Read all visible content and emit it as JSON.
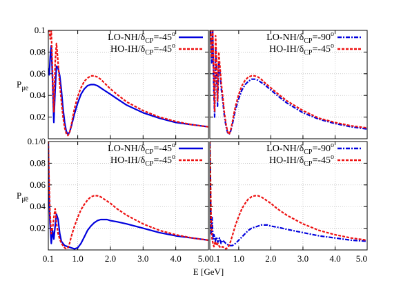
{
  "chart_data": {
    "type": "line",
    "xlabel": "E [GeV]",
    "xlim": [
      0.1,
      5.0
    ],
    "x_ticks": [
      "0.1",
      "1.0",
      "2.0",
      "3.0",
      "4.0",
      "5.0"
    ],
    "x_ticks_right": [
      "0.1",
      "1.0",
      "2.0",
      "3.0",
      "4.0",
      "5.0"
    ],
    "x_tick_left_last": "5.0",
    "x_tick_right_first": "0.1",
    "grid": true,
    "panels": [
      {
        "id": "top-left",
        "ylabel_main": "P",
        "ylabel_sub": "μe",
        "ylim": [
          0,
          0.1
        ],
        "y_ticks": [
          "0.02",
          "0.04",
          "0.06",
          "0.08",
          "0.1"
        ],
        "legend": "top-right",
        "series": [
          {
            "name_main": "LO-NH/δ",
            "name_sub": "CP",
            "name_tail": "=-45",
            "name_sup": "o",
            "color": "#0000dd",
            "style": "solid",
            "x": [
              0.1,
              0.13,
              0.16,
              0.19,
              0.23,
              0.27,
              0.31,
              0.35,
              0.4,
              0.45,
              0.5,
              0.55,
              0.6,
              0.65,
              0.7,
              0.75,
              0.8,
              0.85,
              0.9,
              1.0,
              1.1,
              1.2,
              1.3,
              1.4,
              1.5,
              1.6,
              1.7,
              1.8,
              2.0,
              2.2,
              2.5,
              3.0,
              3.5,
              4.0,
              4.5,
              5.0
            ],
            "y": [
              0.065,
              0.059,
              0.076,
              0.086,
              0.052,
              0.015,
              0.045,
              0.067,
              0.065,
              0.058,
              0.045,
              0.028,
              0.015,
              0.007,
              0.004,
              0.006,
              0.011,
              0.017,
              0.023,
              0.033,
              0.041,
              0.046,
              0.049,
              0.05,
              0.05,
              0.049,
              0.047,
              0.045,
              0.041,
              0.037,
              0.031,
              0.024,
              0.019,
              0.015,
              0.013,
              0.011
            ]
          },
          {
            "name_main": "HO-IH/δ",
            "name_sub": "CP",
            "name_tail": "=-45",
            "name_sup": "o",
            "color": "#ee1111",
            "style": "dashed",
            "x": [
              0.1,
              0.13,
              0.16,
              0.19,
              0.23,
              0.27,
              0.31,
              0.35,
              0.4,
              0.45,
              0.5,
              0.55,
              0.6,
              0.65,
              0.7,
              0.75,
              0.8,
              0.85,
              0.9,
              1.0,
              1.1,
              1.2,
              1.3,
              1.4,
              1.5,
              1.6,
              1.7,
              1.8,
              2.0,
              2.2,
              2.5,
              3.0,
              3.5,
              4.0,
              4.5,
              5.0
            ],
            "y": [
              0.1,
              0.1,
              0.092,
              0.1,
              0.06,
              0.025,
              0.07,
              0.088,
              0.07,
              0.05,
              0.035,
              0.02,
              0.01,
              0.005,
              0.003,
              0.006,
              0.012,
              0.02,
              0.028,
              0.039,
              0.047,
              0.053,
              0.056,
              0.058,
              0.058,
              0.057,
              0.055,
              0.052,
              0.046,
              0.041,
              0.034,
              0.026,
              0.02,
              0.016,
              0.013,
              0.011
            ]
          }
        ]
      },
      {
        "id": "top-right",
        "ylim": [
          0,
          0.1
        ],
        "legend": "top-right",
        "series": [
          {
            "name_main": "LO-NH/δ",
            "name_sub": "CP",
            "name_tail": "=-90",
            "name_sup": "o",
            "color": "#0000dd",
            "style": "dashdot",
            "x": [
              0.1,
              0.13,
              0.16,
              0.19,
              0.22,
              0.25,
              0.28,
              0.31,
              0.34,
              0.38,
              0.42,
              0.46,
              0.5,
              0.55,
              0.6,
              0.65,
              0.7,
              0.75,
              0.8,
              0.85,
              0.9,
              1.0,
              1.1,
              1.2,
              1.3,
              1.4,
              1.5,
              1.6,
              1.7,
              1.8,
              2.0,
              2.2,
              2.5,
              3.0,
              3.5,
              4.0,
              4.5,
              5.0
            ],
            "y": [
              0.1,
              0.1,
              0.07,
              0.1,
              0.05,
              0.02,
              0.085,
              0.06,
              0.03,
              0.072,
              0.06,
              0.045,
              0.036,
              0.022,
              0.012,
              0.006,
              0.004,
              0.007,
              0.013,
              0.02,
              0.027,
              0.037,
              0.045,
              0.05,
              0.053,
              0.055,
              0.055,
              0.054,
              0.052,
              0.05,
              0.045,
              0.04,
              0.033,
              0.024,
              0.018,
              0.014,
              0.011,
              0.009
            ]
          },
          {
            "name_main": "HO-IH/δ",
            "name_sub": "CP",
            "name_tail": "=-45",
            "name_sup": "o",
            "color": "#ee1111",
            "style": "dashed",
            "x": [
              0.1,
              0.13,
              0.16,
              0.19,
              0.22,
              0.25,
              0.28,
              0.31,
              0.34,
              0.38,
              0.42,
              0.46,
              0.5,
              0.55,
              0.6,
              0.65,
              0.7,
              0.75,
              0.8,
              0.85,
              0.9,
              1.0,
              1.1,
              1.2,
              1.3,
              1.4,
              1.5,
              1.6,
              1.7,
              1.8,
              2.0,
              2.2,
              2.5,
              3.0,
              3.5,
              4.0,
              4.5,
              5.0
            ],
            "y": [
              0.1,
              0.1,
              0.075,
              0.1,
              0.06,
              0.025,
              0.095,
              0.07,
              0.035,
              0.08,
              0.065,
              0.05,
              0.04,
              0.025,
              0.014,
              0.007,
              0.004,
              0.008,
              0.015,
              0.023,
              0.03,
              0.041,
              0.049,
              0.054,
              0.057,
              0.058,
              0.058,
              0.057,
              0.055,
              0.052,
              0.047,
              0.042,
              0.035,
              0.026,
              0.019,
              0.015,
              0.012,
              0.01
            ]
          }
        ]
      },
      {
        "id": "bottom-left",
        "ylabel_main": "P",
        "ylabel_sub": "μ̄ē",
        "ylim": [
          0,
          0.1
        ],
        "y_ticks": [
          "0.02",
          "0.04",
          "0.06",
          "0.08",
          "0.1/0"
        ],
        "legend": "top-right",
        "series": [
          {
            "name_main": "LO-NH/δ",
            "name_sub": "CP",
            "name_tail": "=-45",
            "name_sup": "o",
            "color": "#0000dd",
            "style": "solid",
            "x": [
              0.1,
              0.12,
              0.15,
              0.19,
              0.23,
              0.27,
              0.31,
              0.35,
              0.4,
              0.45,
              0.5,
              0.55,
              0.6,
              0.7,
              0.8,
              0.9,
              1.0,
              1.1,
              1.2,
              1.3,
              1.4,
              1.5,
              1.6,
              1.7,
              1.8,
              1.9,
              2.0,
              2.2,
              2.5,
              3.0,
              3.5,
              4.0,
              4.5,
              5.0
            ],
            "y": [
              0.1,
              0.055,
              0.025,
              0.006,
              0.018,
              0.01,
              0.022,
              0.033,
              0.028,
              0.015,
              0.008,
              0.006,
              0.004,
              0.003,
              0.002,
              0.001,
              0.002,
              0.006,
              0.012,
              0.018,
              0.022,
              0.025,
              0.027,
              0.028,
              0.028,
              0.028,
              0.027,
              0.026,
              0.024,
              0.02,
              0.016,
              0.013,
              0.011,
              0.009
            ]
          },
          {
            "name_main": "HO-IH/δ",
            "name_sub": "CP",
            "name_tail": "=-45",
            "name_sup": "o",
            "color": "#ee1111",
            "style": "dashed",
            "x": [
              0.1,
              0.12,
              0.15,
              0.19,
              0.23,
              0.27,
              0.31,
              0.35,
              0.4,
              0.45,
              0.5,
              0.55,
              0.6,
              0.65,
              0.7,
              0.75,
              0.8,
              0.9,
              1.0,
              1.1,
              1.2,
              1.3,
              1.4,
              1.5,
              1.6,
              1.7,
              1.8,
              2.0,
              2.2,
              2.5,
              3.0,
              3.5,
              4.0,
              4.5,
              5.0
            ],
            "y": [
              0.1,
              0.07,
              0.035,
              0.015,
              0.02,
              0.03,
              0.038,
              0.025,
              0.015,
              0.01,
              0.006,
              0.004,
              0.002,
              0.001,
              0.002,
              0.006,
              0.012,
              0.022,
              0.03,
              0.037,
              0.042,
              0.046,
              0.049,
              0.05,
              0.05,
              0.049,
              0.047,
              0.043,
              0.038,
              0.032,
              0.024,
              0.018,
              0.014,
              0.011,
              0.009
            ]
          }
        ]
      },
      {
        "id": "bottom-right",
        "ylim": [
          0,
          0.1
        ],
        "legend": "top-right",
        "series": [
          {
            "name_main": "LO-NH/δ",
            "name_sub": "CP",
            "name_tail": "=-90",
            "name_sup": "o",
            "color": "#0000dd",
            "style": "dashdot",
            "x": [
              0.1,
              0.12,
              0.14,
              0.17,
              0.2,
              0.23,
              0.27,
              0.31,
              0.35,
              0.4,
              0.45,
              0.5,
              0.6,
              0.7,
              0.8,
              0.9,
              1.0,
              1.1,
              1.2,
              1.3,
              1.4,
              1.5,
              1.6,
              1.7,
              1.8,
              1.9,
              2.0,
              2.2,
              2.5,
              3.0,
              3.5,
              4.0,
              4.5,
              5.0
            ],
            "y": [
              0.1,
              0.06,
              0.015,
              0.03,
              0.01,
              0.014,
              0.008,
              0.012,
              0.007,
              0.011,
              0.006,
              0.009,
              0.006,
              0.004,
              0.004,
              0.006,
              0.009,
              0.012,
              0.015,
              0.018,
              0.02,
              0.021,
              0.022,
              0.023,
              0.023,
              0.023,
              0.022,
              0.021,
              0.019,
              0.016,
              0.013,
              0.011,
              0.009,
              0.008
            ]
          },
          {
            "name_main": "HO-IH/δ",
            "name_sub": "CP",
            "name_tail": "=-45",
            "name_sup": "o",
            "color": "#ee1111",
            "style": "dashed",
            "x": [
              0.1,
              0.12,
              0.14,
              0.17,
              0.2,
              0.23,
              0.27,
              0.31,
              0.35,
              0.4,
              0.45,
              0.5,
              0.55,
              0.6,
              0.65,
              0.7,
              0.75,
              0.8,
              0.9,
              1.0,
              1.1,
              1.2,
              1.3,
              1.4,
              1.5,
              1.6,
              1.7,
              1.8,
              2.0,
              2.2,
              2.5,
              3.0,
              3.5,
              4.0,
              4.5,
              5.0
            ],
            "y": [
              0.1,
              0.07,
              0.03,
              0.01,
              0.006,
              0.003,
              0.008,
              0.004,
              0.006,
              0.003,
              0.002,
              0.003,
              0.002,
              0.001,
              0.002,
              0.004,
              0.008,
              0.013,
              0.023,
              0.031,
              0.038,
              0.043,
              0.047,
              0.049,
              0.05,
              0.05,
              0.049,
              0.047,
              0.043,
              0.038,
              0.032,
              0.024,
              0.018,
              0.014,
              0.011,
              0.009
            ]
          }
        ]
      }
    ]
  }
}
